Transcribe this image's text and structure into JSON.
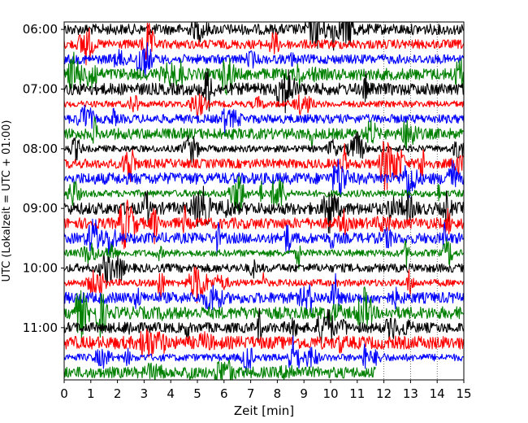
{
  "chart_data": {
    "type": "line",
    "title": "",
    "xlabel": "Zeit  [min]",
    "ylabel": "UTC (Lokalzeit = UTC + 01:00)",
    "xlim": [
      0,
      15
    ],
    "x_ticks": [
      "0",
      "1",
      "2",
      "3",
      "4",
      "5",
      "6",
      "7",
      "8",
      "9",
      "10",
      "11",
      "12",
      "13",
      "14",
      "15"
    ],
    "y_ticks": [
      {
        "label": "06:00",
        "time_utc": "06:00"
      },
      {
        "label": "07:00",
        "time_utc": "07:00"
      },
      {
        "label": "08:00",
        "time_utc": "08:00"
      },
      {
        "label": "09:00",
        "time_utc": "09:00"
      },
      {
        "label": "10:00",
        "time_utc": "10:00"
      },
      {
        "label": "11:00",
        "time_utc": "11:00"
      }
    ],
    "start_time_utc": "06:00",
    "end_time_utc": "12:00",
    "trace_minutes": 15,
    "trace_colors": [
      "#000000",
      "#ff0000",
      "#0000ff",
      "#008000"
    ],
    "last_trace_end_minute": 11.7,
    "dotted_gridlines_minutes": [
      12,
      13,
      14
    ],
    "grid": false,
    "legend": "none"
  }
}
